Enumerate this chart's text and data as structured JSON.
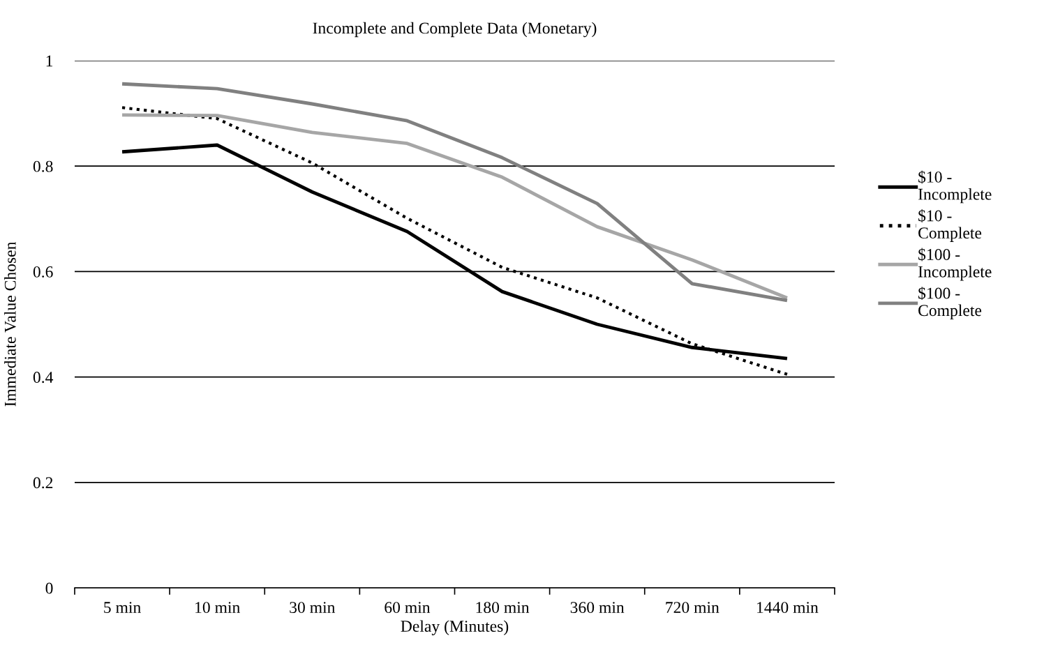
{
  "chart_data": {
    "type": "line",
    "title": "Incomplete and Complete Data (Monetary)",
    "xlabel": "Delay (Minutes)",
    "ylabel": "Immediate Value Chosen",
    "categories": [
      "5 min",
      "10 min",
      "30 min",
      "60 min",
      "180 min",
      "360 min",
      "720 min",
      "1440 min"
    ],
    "series": [
      {
        "name": "$10 - Incomplete",
        "color": "#000000",
        "line_style": "solid",
        "values": [
          0.827,
          0.84,
          0.751,
          0.676,
          0.562,
          0.5,
          0.456,
          0.435
        ]
      },
      {
        "name": "$10 - Complete",
        "color": "#000000",
        "line_style": "dotted",
        "values": [
          0.911,
          0.89,
          0.806,
          0.701,
          0.608,
          0.55,
          0.463,
          0.405
        ]
      },
      {
        "name": "$100 - Incomplete",
        "color": "#a6a6a6",
        "line_style": "solid",
        "values": [
          0.897,
          0.896,
          0.864,
          0.843,
          0.779,
          0.685,
          0.622,
          0.55
        ]
      },
      {
        "name": "$100 - Complete",
        "color": "#808080",
        "line_style": "solid",
        "values": [
          0.956,
          0.947,
          0.918,
          0.886,
          0.816,
          0.729,
          0.577,
          0.545
        ]
      }
    ],
    "ylim": [
      0,
      1
    ],
    "yticks": [
      0,
      0.2,
      0.4,
      0.6,
      0.8,
      1
    ],
    "grid": "y",
    "legend": "right",
    "marker": "none"
  }
}
